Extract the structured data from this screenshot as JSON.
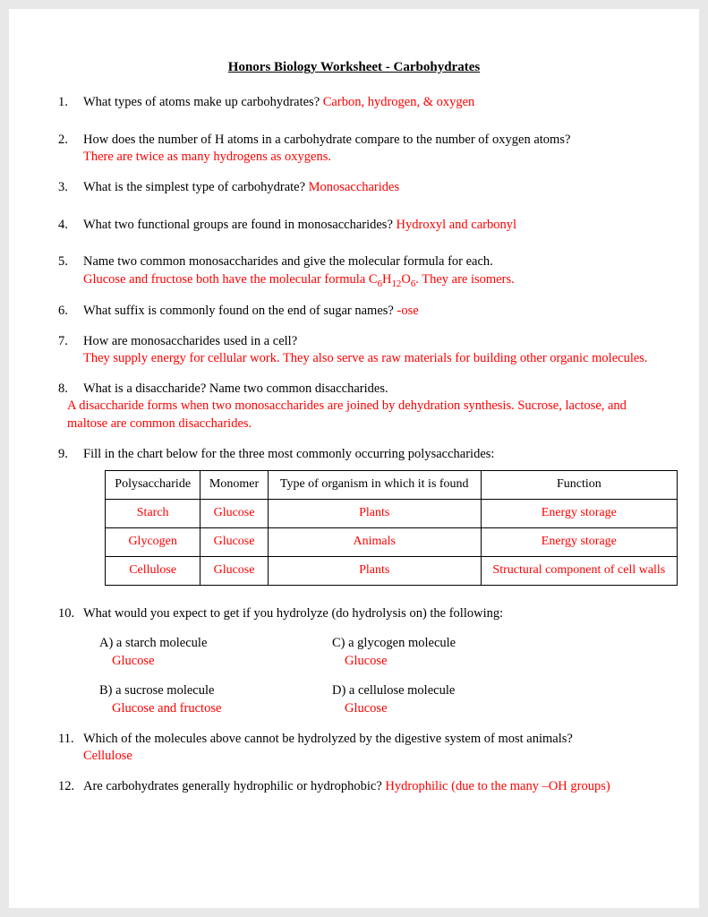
{
  "title": "Honors Biology Worksheet - Carbohydrates",
  "colors": {
    "answer": "#ff0000",
    "text": "#000000",
    "bg": "#ffffff"
  },
  "q1": {
    "num": "1",
    "q": "What types of atoms make up carbohydrates?  ",
    "a": "Carbon, hydrogen, & oxygen"
  },
  "q2": {
    "num": "2",
    "q": "How does the number of H atoms in a carbohydrate compare to the number of oxygen atoms?",
    "a": "There are twice as many hydrogens as oxygens."
  },
  "q3": {
    "num": "3",
    "q": "What is the simplest type of carbohydrate? ",
    "a": "Monosaccharides"
  },
  "q4": {
    "num": "4",
    "q": "What two functional groups are found in monosaccharides?  ",
    "a": "Hydroxyl and carbonyl"
  },
  "q5": {
    "num": "5",
    "q": "Name two common monosaccharides and give the molecular formula for each.",
    "a_pre": "Glucose and fructose both have the molecular formula C",
    "a_post": ".  They are isomers."
  },
  "q6": {
    "num": "6",
    "q": "What suffix is commonly found on the end of sugar names?  ",
    "a": "-ose"
  },
  "q7": {
    "num": "7",
    "q": "How are monosaccharides used in a cell?",
    "a": "They supply energy for cellular work.  They also serve as raw materials for building other organic molecules."
  },
  "q8": {
    "num": "8",
    "q": "What is a disaccharide?  Name two common disaccharides.",
    "a": "A disaccharide forms when two monosaccharides are joined by dehydration synthesis.  Sucrose, lactose, and maltose are common disaccharides."
  },
  "q9": {
    "num": "9",
    "q": "Fill in the chart below for the three most commonly occurring polysaccharides:"
  },
  "table": {
    "headers": {
      "c1": "Polysaccharide",
      "c2": "Monomer",
      "c3": "Type of organism in which it is found",
      "c4": "Function"
    },
    "r1": {
      "c1": "Starch",
      "c2": "Glucose",
      "c3": "Plants",
      "c4": "Energy storage"
    },
    "r2": {
      "c1": "Glycogen",
      "c2": "Glucose",
      "c3": "Animals",
      "c4": "Energy storage"
    },
    "r3": {
      "c1": "Cellulose",
      "c2": "Glucose",
      "c3": "Plants",
      "c4": "Structural component of cell walls"
    }
  },
  "q10": {
    "num": "10",
    "q": "What would you expect to get if you hydrolyze (do hydrolysis on) the following:",
    "a": {
      "label": "A) a starch molecule",
      "ans": "Glucose"
    },
    "b": {
      "label": "B) a sucrose molecule",
      "ans": "Glucose and fructose"
    },
    "c": {
      "label": "C) a glycogen molecule",
      "ans": "Glucose"
    },
    "d": {
      "label": "D) a cellulose molecule",
      "ans": "Glucose"
    }
  },
  "q11": {
    "num": "11",
    "q": "Which of the molecules above cannot be hydrolyzed by the digestive system of most animals?",
    "a": "Cellulose"
  },
  "q12": {
    "num": "12",
    "q": "Are carbohydrates generally hydrophilic or hydrophobic?  ",
    "a": "Hydrophilic (due to the many –OH groups)"
  }
}
